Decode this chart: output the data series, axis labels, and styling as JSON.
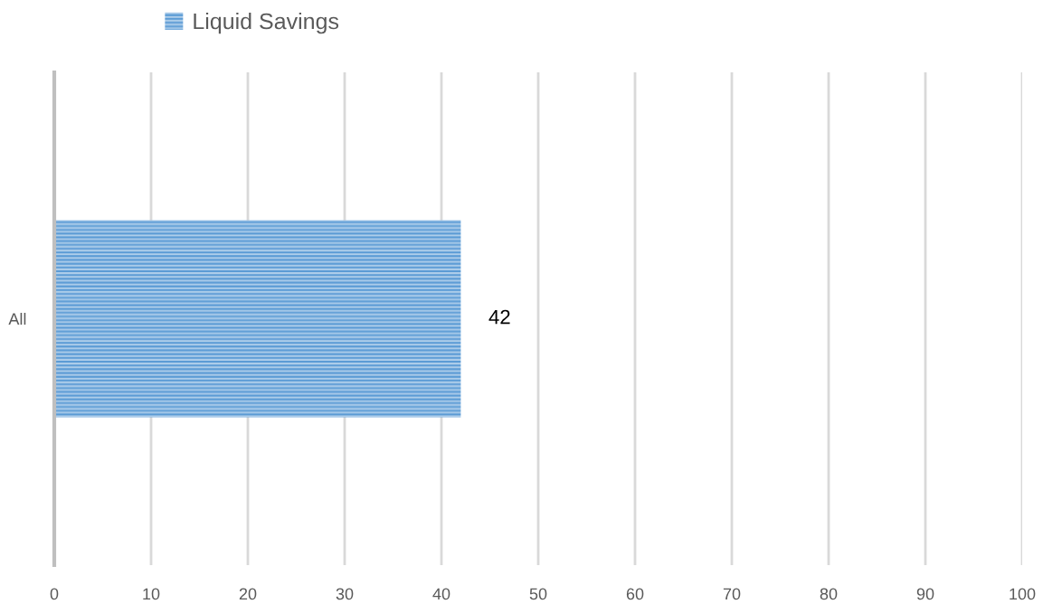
{
  "chart_data": {
    "type": "bar",
    "orientation": "horizontal",
    "categories": [
      "All"
    ],
    "series": [
      {
        "name": "Liquid Savings",
        "color": "#5b9bd5",
        "values": [
          42
        ]
      }
    ],
    "xlim": [
      0,
      100
    ],
    "xticks": [
      0,
      10,
      20,
      30,
      40,
      50,
      60,
      70,
      80,
      90,
      100
    ],
    "grid": "x",
    "legend": "top",
    "data_labels": true
  }
}
